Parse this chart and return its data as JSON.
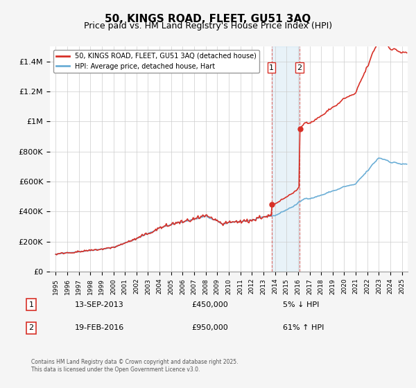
{
  "title": "50, KINGS ROAD, FLEET, GU51 3AQ",
  "subtitle": "Price paid vs. HM Land Registry's House Price Index (HPI)",
  "xlabel": "",
  "ylabel": "",
  "ylim": [
    0,
    1500000
  ],
  "yticks": [
    0,
    200000,
    400000,
    600000,
    800000,
    1000000,
    1200000,
    1400000
  ],
  "ytick_labels": [
    "£0",
    "£200K",
    "£400K",
    "£600K",
    "£800K",
    "£1M",
    "£1.2M",
    "£1.4M"
  ],
  "xlim_start": 1994.5,
  "xlim_end": 2025.5,
  "hpi_color": "#6baed6",
  "price_color": "#d73027",
  "sale1_date": 2013.7,
  "sale1_price": 450000,
  "sale2_date": 2016.12,
  "sale2_price": 950000,
  "shade_x1": 2015.0,
  "shade_x2": 2016.6,
  "legend_label1": "50, KINGS ROAD, FLEET, GU51 3AQ (detached house)",
  "legend_label2": "HPI: Average price, detached house, Hart",
  "table_rows": [
    {
      "num": "1",
      "date": "13-SEP-2013",
      "price": "£450,000",
      "hpi": "5% ↓ HPI"
    },
    {
      "num": "2",
      "date": "19-FEB-2016",
      "price": "£950,000",
      "hpi": "61% ↑ HPI"
    }
  ],
  "footer": "Contains HM Land Registry data © Crown copyright and database right 2025.\nThis data is licensed under the Open Government Licence v3.0.",
  "bg_color": "#f5f5f5",
  "plot_bg": "#ffffff",
  "grid_color": "#cccccc"
}
